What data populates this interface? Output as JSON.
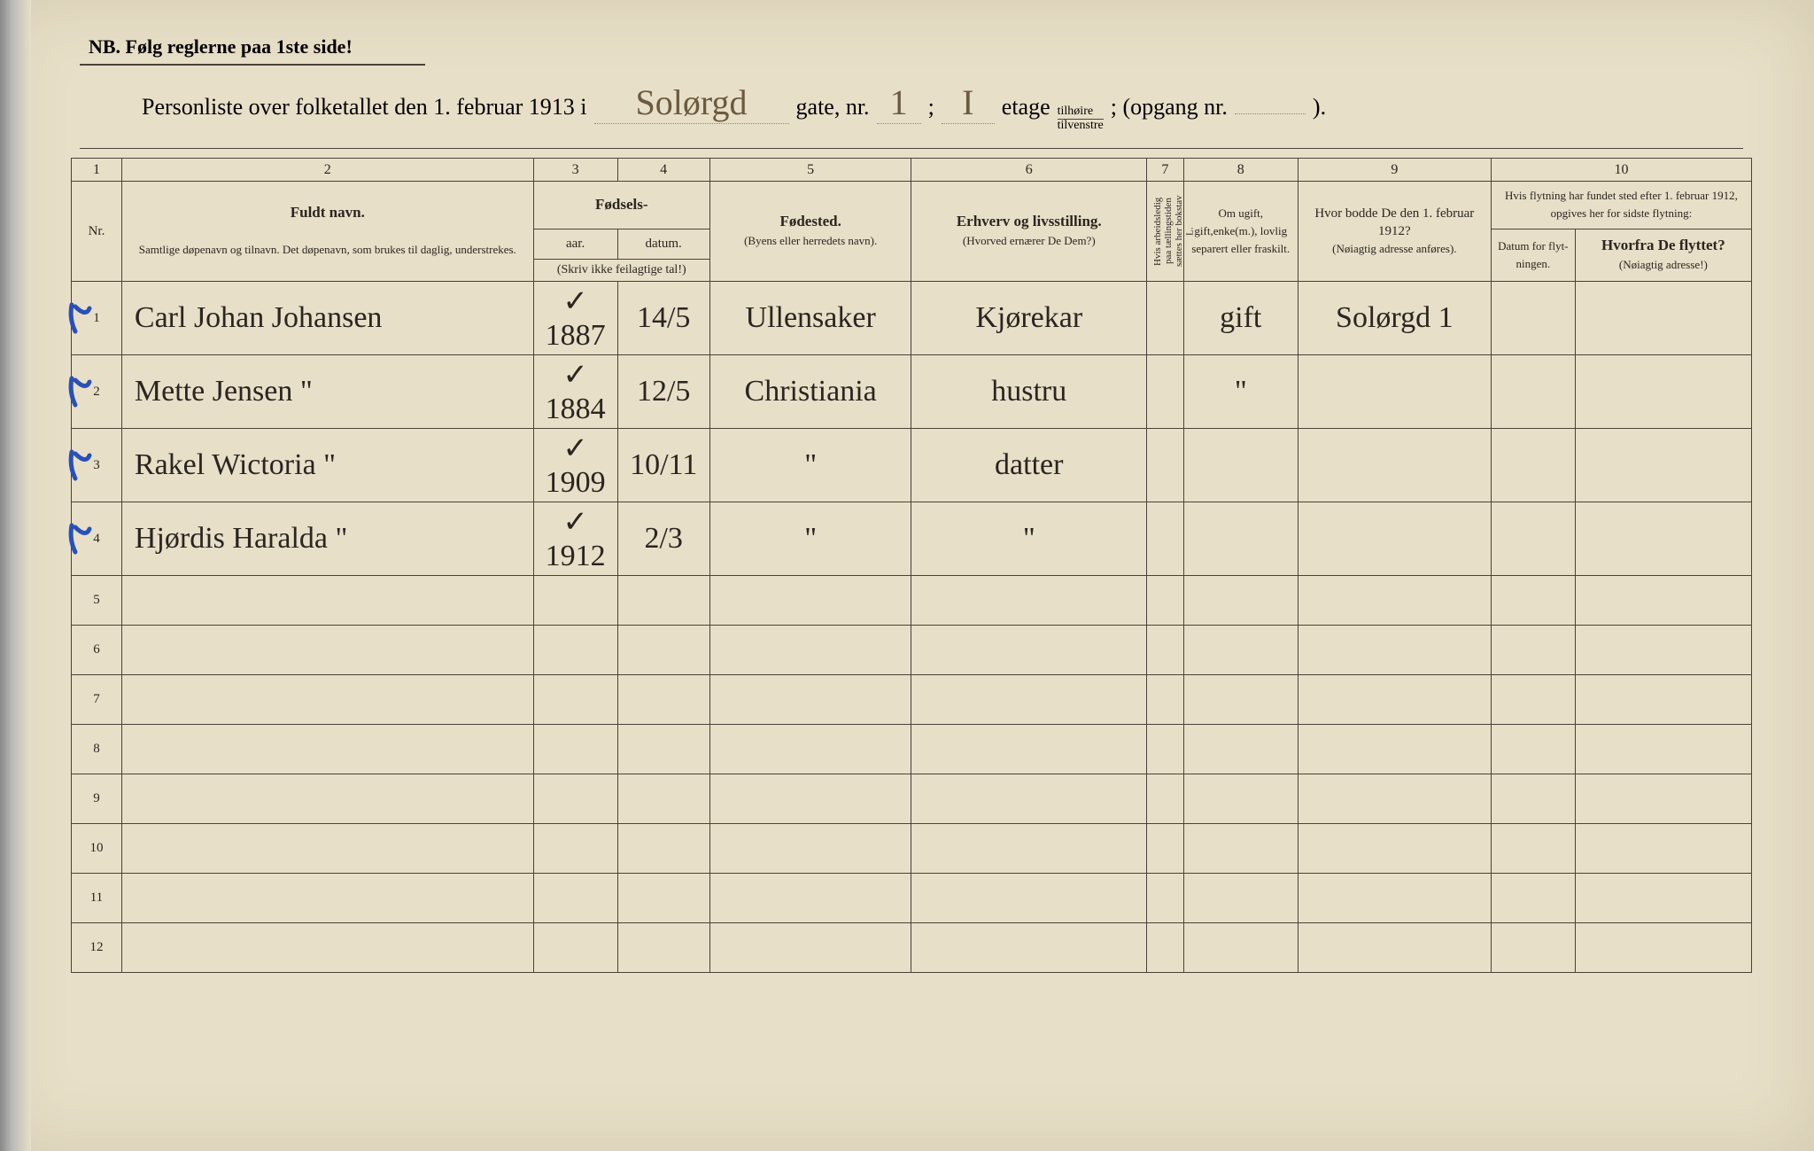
{
  "page": {
    "background_color": "#e8dfc8",
    "ink_color": "#4a4238",
    "handwriting_color": "#6b5a3f",
    "blue_pencil_color": "#2850b8"
  },
  "header": {
    "note": "NB.   Følg reglerne paa 1ste side!",
    "title_prefix": "Personliste over folketallet den 1. februar 1913 i",
    "street_name": "Solørgd",
    "gate_label": "gate, nr.",
    "gate_nr": "1",
    "semicolon": ";",
    "etage_val": "I",
    "etage_label": "etage",
    "side_top": "tilhøire",
    "side_bottom": "tilvenstre",
    "opgang_label": "; (opgang nr.",
    "opgang_nr": "",
    "closing": ")."
  },
  "columns": {
    "numbers": [
      "1",
      "2",
      "3",
      "4",
      "5",
      "6",
      "7",
      "8",
      "9",
      "10"
    ],
    "nr": "Nr.",
    "name_title": "Fuldt navn.",
    "name_sub": "Samtlige døpenavn og tilnavn.  Det døpenavn, som brukes til daglig, understrekes.",
    "birth_title": "Fødsels-",
    "year": "aar.",
    "date": "datum.",
    "birth_note": "(Skriv ikke feilagtige tal!)",
    "birthplace_title": "Fødested.",
    "birthplace_sub": "(Byens eller herredets navn).",
    "occupation_title": "Erhverv og livsstilling.",
    "occupation_sub": "(Hvorved ernærer De Dem?)",
    "col7_text": "Hvis arbeidsledig paa tællingstiden sættes her bokstav L.",
    "marital_title": "Om ugift, gift,enke(m.), lovlig separert eller fraskilt.",
    "prev_title": "Hvor bodde De den 1. februar 1912?",
    "prev_sub": "(Nøiagtig adresse anføres).",
    "move_title": "Hvis flytning har fundet sted efter 1. februar 1912, opgives her for sidste flytning:",
    "move_date": "Datum for flyt- ningen.",
    "move_from_title": "Hvorfra De flyttet?",
    "move_from_sub": "(Nøiagtig adresse!)"
  },
  "rows": [
    {
      "nr": "1",
      "mark": true,
      "name": "Carl Johan Johansen",
      "check": "✓",
      "year": "1887",
      "date": "14/5",
      "birthplace": "Ullensaker",
      "occupation": "Kjørekar",
      "marital": "gift",
      "prev": "Solørgd 1"
    },
    {
      "nr": "2",
      "mark": true,
      "name": "Mette Jensen",
      "check": "✓",
      "ditto_name": "\"",
      "year": "1884",
      "date": "12/5",
      "birthplace": "Christiania",
      "occupation": "hustru",
      "marital": "\"",
      "prev": ""
    },
    {
      "nr": "3",
      "mark": true,
      "name": "Rakel Wictoria",
      "check": "✓",
      "ditto_name": "\"",
      "year": "1909",
      "date": "10/11",
      "birthplace": "\"",
      "occupation": "datter",
      "marital": "",
      "prev": ""
    },
    {
      "nr": "4",
      "mark": true,
      "name": "Hjørdis Haralda",
      "check": "✓",
      "ditto_name": "\"",
      "year": "1912",
      "date": "2/3",
      "birthplace": "\"",
      "occupation": "\"",
      "marital": "",
      "prev": ""
    },
    {
      "nr": "5"
    },
    {
      "nr": "6"
    },
    {
      "nr": "7"
    },
    {
      "nr": "8"
    },
    {
      "nr": "9"
    },
    {
      "nr": "10"
    },
    {
      "nr": "11"
    },
    {
      "nr": "12"
    }
  ]
}
